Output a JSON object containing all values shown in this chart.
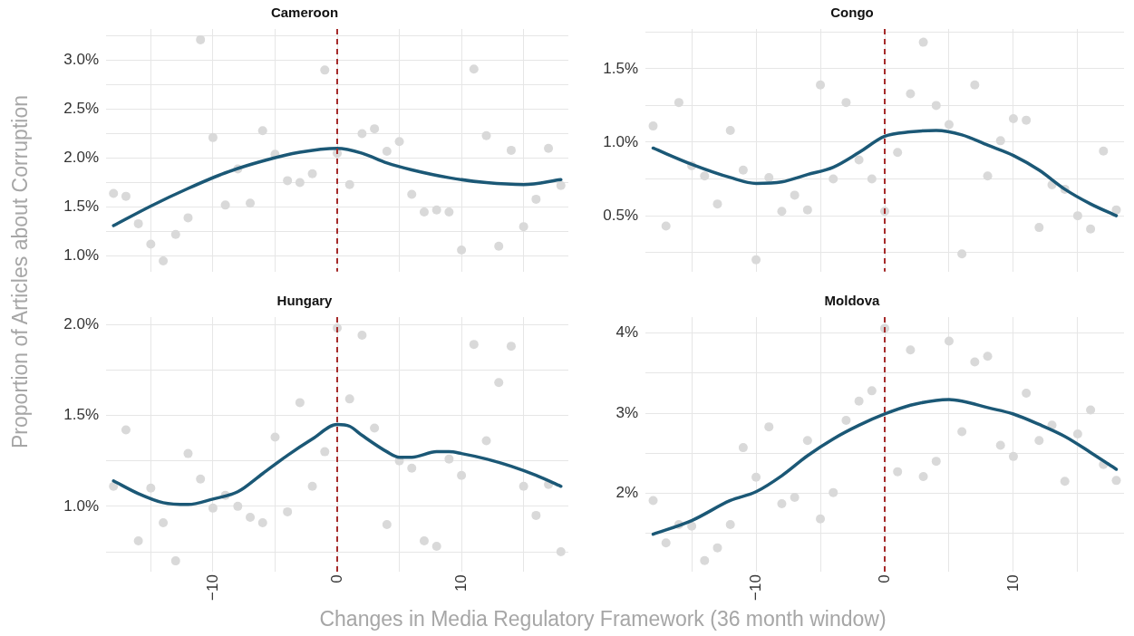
{
  "chart_data": [
    {
      "type": "scatter",
      "title": "Cameroon",
      "ylabel": "Proportion of Articles about Corruption",
      "x": [
        -18,
        -17,
        -16,
        -15,
        -14,
        -13,
        -12,
        -11,
        -10,
        -9,
        -8,
        -7,
        -6,
        -5,
        -4,
        -3,
        -2,
        -1,
        0,
        1,
        2,
        3,
        4,
        5,
        6,
        7,
        8,
        9,
        10,
        11,
        12,
        13,
        14,
        15,
        16,
        17,
        18
      ],
      "series": [
        {
          "type": "scatter",
          "marker": "circle",
          "color": "#d9d9d9",
          "values": [
            1.64,
            1.61,
            1.33,
            1.12,
            0.95,
            1.22,
            1.39,
            3.21,
            2.21,
            1.52,
            1.89,
            1.54,
            2.28,
            2.04,
            1.77,
            1.75,
            1.84,
            2.9,
            2.05,
            1.73,
            2.25,
            2.3,
            2.07,
            2.17,
            1.63,
            1.45,
            1.47,
            1.45,
            1.06,
            2.91,
            2.23,
            1.1,
            2.08,
            1.3,
            1.58,
            2.1,
            1.72
          ]
        },
        {
          "type": "line",
          "marker": "none",
          "color": "#1b5876",
          "x": [
            -18,
            -15,
            -12,
            -9,
            -6,
            -3,
            0,
            2,
            4,
            6,
            9,
            12,
            15,
            18
          ],
          "values": [
            1.31,
            1.51,
            1.69,
            1.85,
            1.97,
            2.06,
            2.1,
            2.05,
            1.95,
            1.88,
            1.8,
            1.75,
            1.73,
            1.78
          ]
        }
      ],
      "xlim": [
        -18.6,
        18.6
      ],
      "xticks": [
        {
          "value": -15,
          "label": null
        },
        {
          "value": -10,
          "label": null
        },
        {
          "value": -5,
          "label": null
        },
        {
          "value": 0,
          "label": null
        },
        {
          "value": 5,
          "label": null
        },
        {
          "value": 10,
          "label": null
        },
        {
          "value": 15,
          "label": null
        }
      ],
      "ylim": [
        0.84,
        3.32
      ],
      "yticks": [
        {
          "value": 1,
          "label": "1.0%"
        },
        {
          "value": 1.25,
          "label": null
        },
        {
          "value": 1.5,
          "label": "1.5%"
        },
        {
          "value": 1.75,
          "label": null
        },
        {
          "value": 2,
          "label": "2.0%"
        },
        {
          "value": 2.25,
          "label": null
        },
        {
          "value": 2.5,
          "label": "2.5%"
        },
        {
          "value": 2.75,
          "label": null
        },
        {
          "value": 3,
          "label": "3.0%"
        },
        {
          "value": 3.25,
          "label": null
        }
      ],
      "ref_lines": [
        {
          "axis": "x",
          "value": 0,
          "color": "#a52a2a",
          "line_style": "dashed"
        }
      ],
      "grid": true,
      "tick_labels": "y"
    },
    {
      "type": "scatter",
      "title": "Congo",
      "x": [
        -18,
        -17,
        -16,
        -15,
        -14,
        -13,
        -12,
        -11,
        -10,
        -9,
        -8,
        -7,
        -6,
        -5,
        -4,
        -3,
        -2,
        -1,
        0,
        1,
        2,
        3,
        4,
        5,
        6,
        7,
        8,
        9,
        10,
        11,
        12,
        13,
        14,
        15,
        16,
        17,
        18
      ],
      "series": [
        {
          "type": "scatter",
          "marker": "circle",
          "color": "#d9d9d9",
          "values": [
            1.11,
            0.43,
            1.27,
            0.84,
            0.77,
            0.58,
            1.08,
            0.81,
            0.2,
            0.76,
            0.53,
            0.64,
            0.54,
            1.39,
            0.75,
            1.27,
            0.88,
            0.75,
            0.53,
            0.93,
            1.33,
            1.68,
            1.25,
            1.12,
            0.24,
            1.39,
            0.77,
            1.01,
            1.16,
            1.15,
            0.42,
            0.71,
            0.68,
            0.5,
            0.41,
            0.94,
            0.54
          ]
        },
        {
          "type": "line",
          "marker": "none",
          "color": "#1b5876",
          "x": [
            -18,
            -15,
            -12,
            -10,
            -8,
            -6,
            -4,
            -2,
            0,
            2,
            4,
            6,
            8,
            10,
            12,
            14,
            16,
            18
          ],
          "values": [
            0.96,
            0.85,
            0.76,
            0.72,
            0.73,
            0.78,
            0.83,
            0.93,
            1.04,
            1.07,
            1.08,
            1.05,
            0.98,
            0.91,
            0.81,
            0.68,
            0.58,
            0.5
          ]
        }
      ],
      "xlim": [
        -18.6,
        18.6
      ],
      "xticks": [
        {
          "value": -15,
          "label": null
        },
        {
          "value": -10,
          "label": null
        },
        {
          "value": -5,
          "label": null
        },
        {
          "value": 0,
          "label": null
        },
        {
          "value": 5,
          "label": null
        },
        {
          "value": 10,
          "label": null
        },
        {
          "value": 15,
          "label": null
        }
      ],
      "ylim": [
        0.12,
        1.77
      ],
      "yticks": [
        {
          "value": 0.25,
          "label": null
        },
        {
          "value": 0.5,
          "label": "0.5%"
        },
        {
          "value": 0.75,
          "label": null
        },
        {
          "value": 1,
          "label": "1.0%"
        },
        {
          "value": 1.25,
          "label": null
        },
        {
          "value": 1.5,
          "label": "1.5%"
        },
        {
          "value": 1.75,
          "label": null
        }
      ],
      "ref_lines": [
        {
          "axis": "x",
          "value": 0,
          "color": "#a52a2a",
          "line_style": "dashed"
        }
      ],
      "grid": true,
      "tick_labels": "y"
    },
    {
      "type": "scatter",
      "title": "Hungary",
      "xlabel": "Changes in Media Regulatory Framework (36 month window)",
      "x": [
        -18,
        -17,
        -16,
        -15,
        -14,
        -13,
        -12,
        -11,
        -10,
        -9,
        -8,
        -7,
        -6,
        -5,
        -4,
        -3,
        -2,
        -1,
        0,
        1,
        2,
        3,
        4,
        5,
        6,
        7,
        8,
        9,
        10,
        11,
        12,
        13,
        14,
        15,
        16,
        17,
        18
      ],
      "series": [
        {
          "type": "scatter",
          "marker": "circle",
          "color": "#d9d9d9",
          "values": [
            1.11,
            1.42,
            0.81,
            1.1,
            0.91,
            0.7,
            1.29,
            1.15,
            0.99,
            1.06,
            1.0,
            0.94,
            0.91,
            1.38,
            0.97,
            1.57,
            1.11,
            1.3,
            1.98,
            1.59,
            1.94,
            1.43,
            0.9,
            1.25,
            1.21,
            0.81,
            0.78,
            1.26,
            1.17,
            1.89,
            1.36,
            1.68,
            1.88,
            1.11,
            0.95,
            1.12,
            0.75
          ]
        },
        {
          "type": "line",
          "marker": "none",
          "color": "#1b5876",
          "x": [
            -18,
            -16,
            -14,
            -12,
            -10,
            -8,
            -6,
            -4,
            -2,
            0,
            1,
            2,
            4,
            5,
            6,
            8,
            9,
            10,
            12,
            14,
            16,
            18
          ],
          "values": [
            1.14,
            1.07,
            1.02,
            1.01,
            1.04,
            1.08,
            1.18,
            1.28,
            1.37,
            1.45,
            1.44,
            1.39,
            1.3,
            1.27,
            1.27,
            1.3,
            1.3,
            1.29,
            1.26,
            1.22,
            1.17,
            1.11
          ]
        }
      ],
      "xlim": [
        -18.6,
        18.6
      ],
      "xticks": [
        {
          "value": -15,
          "label": null
        },
        {
          "value": -10,
          "label": "−10"
        },
        {
          "value": -5,
          "label": null
        },
        {
          "value": 0,
          "label": "0"
        },
        {
          "value": 5,
          "label": null
        },
        {
          "value": 10,
          "label": "10"
        },
        {
          "value": 15,
          "label": null
        }
      ],
      "ylim": [
        0.64,
        2.04
      ],
      "yticks": [
        {
          "value": 0.75,
          "label": null
        },
        {
          "value": 1,
          "label": "1.0%"
        },
        {
          "value": 1.25,
          "label": null
        },
        {
          "value": 1.5,
          "label": "1.5%"
        },
        {
          "value": 1.75,
          "label": null
        },
        {
          "value": 2,
          "label": "2.0%"
        }
      ],
      "ref_lines": [
        {
          "axis": "x",
          "value": 0,
          "color": "#a52a2a",
          "line_style": "dashed"
        }
      ],
      "grid": true
    },
    {
      "type": "scatter",
      "title": "Moldova",
      "x": [
        -18,
        -17,
        -16,
        -15,
        -14,
        -13,
        -12,
        -11,
        -10,
        -9,
        -8,
        -7,
        -6,
        -5,
        -4,
        -3,
        -2,
        -1,
        0,
        1,
        2,
        3,
        4,
        5,
        6,
        7,
        8,
        9,
        10,
        11,
        12,
        13,
        14,
        15,
        16,
        17,
        18
      ],
      "series": [
        {
          "type": "scatter",
          "marker": "circle",
          "color": "#d9d9d9",
          "values": [
            1.91,
            1.38,
            1.61,
            1.59,
            1.16,
            1.32,
            1.61,
            2.57,
            2.2,
            2.83,
            1.87,
            1.95,
            2.66,
            1.68,
            2.01,
            2.91,
            3.15,
            3.28,
            4.06,
            2.27,
            3.79,
            2.21,
            2.4,
            3.9,
            2.77,
            3.64,
            3.71,
            2.6,
            2.46,
            3.25,
            2.66,
            2.85,
            2.15,
            2.74,
            3.04,
            2.36,
            2.16
          ]
        },
        {
          "type": "line",
          "marker": "none",
          "color": "#1b5876",
          "x": [
            -18,
            -15,
            -12,
            -10,
            -8,
            -6,
            -4,
            -2,
            0,
            2,
            4,
            5,
            6,
            8,
            10,
            12,
            14,
            16,
            18
          ],
          "values": [
            1.49,
            1.66,
            1.91,
            2.02,
            2.22,
            2.47,
            2.68,
            2.85,
            2.99,
            3.1,
            3.16,
            3.17,
            3.15,
            3.07,
            2.99,
            2.86,
            2.71,
            2.51,
            2.3
          ]
        }
      ],
      "xlim": [
        -18.6,
        18.6
      ],
      "xticks": [
        {
          "value": -15,
          "label": null
        },
        {
          "value": -10,
          "label": "−10"
        },
        {
          "value": -5,
          "label": null
        },
        {
          "value": 0,
          "label": "0"
        },
        {
          "value": 5,
          "label": null
        },
        {
          "value": 10,
          "label": "10"
        },
        {
          "value": 15,
          "label": null
        }
      ],
      "ylim": [
        1.02,
        4.2
      ],
      "yticks": [
        {
          "value": 1.5,
          "label": null
        },
        {
          "value": 2,
          "label": "2%"
        },
        {
          "value": 2.5,
          "label": null
        },
        {
          "value": 3,
          "label": "3%"
        },
        {
          "value": 3.5,
          "label": null
        },
        {
          "value": 4,
          "label": "4%"
        }
      ],
      "ref_lines": [
        {
          "axis": "x",
          "value": 0,
          "color": "#a52a2a",
          "line_style": "dashed"
        }
      ],
      "grid": true
    }
  ]
}
